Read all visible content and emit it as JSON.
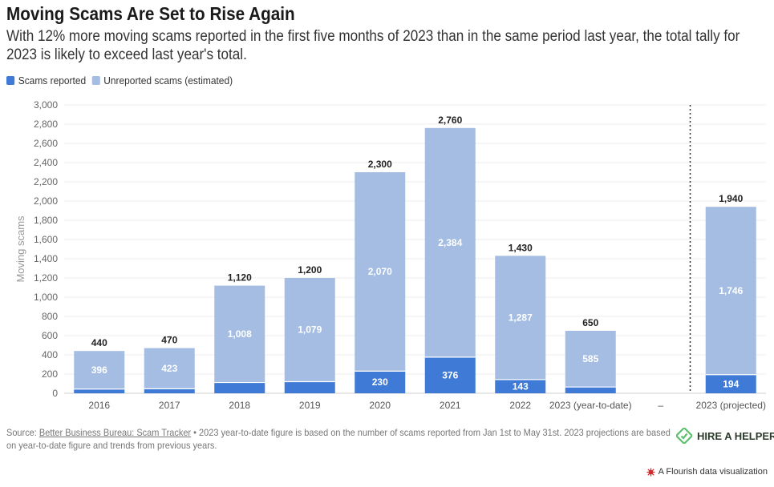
{
  "chart_data": {
    "type": "bar",
    "stacked": true,
    "title": "Moving Scams Are Set to Rise Again",
    "subtitle": "With 12% more moving scams reported in the first five months of 2023 than in the same period last year, the total tally for 2023 is likely to exceed last year's total.",
    "xlabel": "",
    "ylabel": "Moving scams",
    "ylim": [
      0,
      3000
    ],
    "yticks": [
      0,
      200,
      400,
      600,
      800,
      1000,
      1200,
      1400,
      1600,
      1800,
      2000,
      2200,
      2400,
      2600,
      2800,
      3000
    ],
    "ytick_labels": [
      "0",
      "200",
      "400",
      "600",
      "800",
      "1,000",
      "1,200",
      "1,400",
      "1,600",
      "1,800",
      "2,000",
      "2,200",
      "2,400",
      "2,600",
      "2,800",
      "3,000"
    ],
    "categories": [
      "2016",
      "2017",
      "2018",
      "2019",
      "2020",
      "2021",
      "2022",
      "2023 (year-to-date)",
      "–",
      "2023 (projected)"
    ],
    "series": [
      {
        "name": "Scams reported",
        "color": "#3f7ad6",
        "values": [
          44,
          47,
          112,
          121,
          230,
          376,
          143,
          65,
          null,
          194
        ],
        "labels": [
          "",
          "",
          "",
          "",
          "230",
          "376",
          "143",
          "",
          "",
          "194"
        ]
      },
      {
        "name": "Unreported scams (estimated)",
        "color": "#a5bde3",
        "values": [
          396,
          423,
          1008,
          1079,
          2070,
          2384,
          1287,
          585,
          null,
          1746
        ],
        "labels": [
          "396",
          "423",
          "1,008",
          "1,079",
          "2,070",
          "2,384",
          "1,287",
          "585",
          "",
          "1,746"
        ]
      }
    ],
    "totals": [
      "440",
      "470",
      "1,120",
      "1,200",
      "2,300",
      "2,760",
      "1,430",
      "650",
      "",
      "1,940"
    ],
    "divider_after": "2023 (year-to-date)",
    "grid": true,
    "legend_position": "top-left"
  },
  "legend": {
    "reported_label": "Scams reported",
    "unreported_label": "Unreported scams (estimated)"
  },
  "footer": {
    "source_prefix": "Source: ",
    "source_link": "Better Business Bureau: Scam Tracker",
    "note": " • 2023 year-to-date figure is based on the number of scams reported from Jan 1st to May 31st. 2023 projections are based on year-to-date figure and trends from previous years."
  },
  "brand": {
    "name": "HIRE A HELPER",
    "color": "#5cbf6e"
  },
  "attribution": "A Flourish data visualization"
}
